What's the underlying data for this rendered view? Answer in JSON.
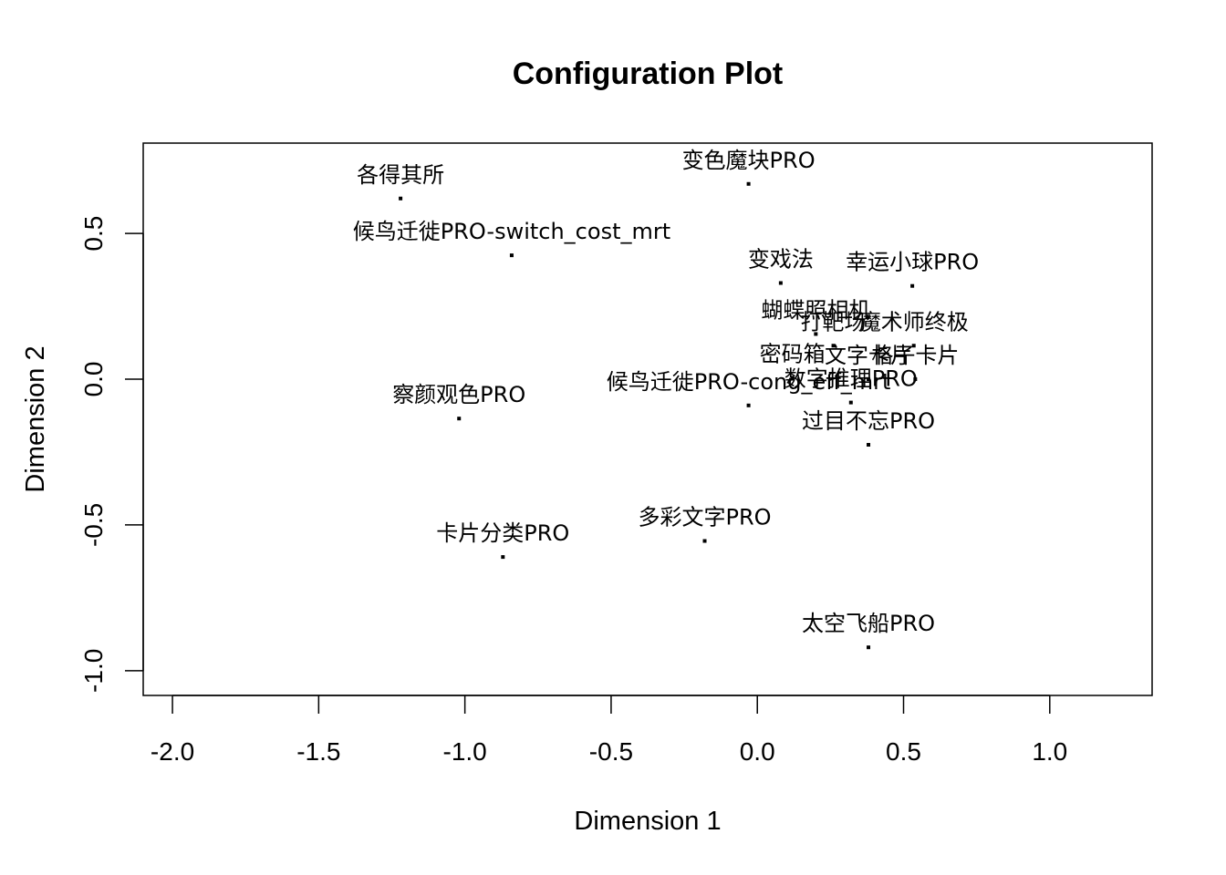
{
  "chart_data": {
    "type": "scatter",
    "title": "Configuration Plot",
    "xlabel": "Dimension 1",
    "ylabel": "Dimension 2",
    "xlim": [
      -2.1,
      1.35
    ],
    "ylim": [
      -1.085,
      0.81
    ],
    "xticks": [
      -2.0,
      -1.5,
      -1.0,
      -0.5,
      0.0,
      0.5,
      1.0
    ],
    "xtick_labels": [
      "-2.0",
      "-1.5",
      "-1.0",
      "-0.5",
      "0.0",
      "0.5",
      "1.0"
    ],
    "yticks": [
      -1.0,
      -0.5,
      0.0,
      0.5
    ],
    "ytick_labels": [
      "-1.0",
      "-0.5",
      "0.0",
      "0.5"
    ],
    "grid": false,
    "points": [
      {
        "label": "各得其所",
        "x": -1.22,
        "y": 0.62
      },
      {
        "label": "变色魔块PRO",
        "x": -0.03,
        "y": 0.67
      },
      {
        "label": "候鸟迁徙PRO-switch_cost_mrt",
        "x": -0.84,
        "y": 0.425
      },
      {
        "label": "变戏法",
        "x": 0.08,
        "y": 0.33
      },
      {
        "label": "幸运小球PRO",
        "x": 0.53,
        "y": 0.32
      },
      {
        "label": "蝴蝶照相机",
        "x": 0.2,
        "y": 0.155
      },
      {
        "label": "打靶场",
        "x": 0.26,
        "y": 0.115
      },
      {
        "label": "魔术师终极",
        "x": 0.535,
        "y": 0.115
      },
      {
        "label": "格子卡片",
        "x": 0.54,
        "y": 0.0
      },
      {
        "label": "文字卡片",
        "x": 0.38,
        "y": 0.0
      },
      {
        "label": "密码箱",
        "x": 0.12,
        "y": 0.005
      },
      {
        "label": "候鸟迁徙PRO-cong_eff_mrt",
        "x": -0.03,
        "y": -0.09
      },
      {
        "label": "数字推理PRO",
        "x": 0.32,
        "y": -0.08
      },
      {
        "label": "过目不忘PRO",
        "x": 0.38,
        "y": -0.225
      },
      {
        "label": "察颜观色PRO",
        "x": -1.02,
        "y": -0.135
      },
      {
        "label": "多彩文字PRO",
        "x": -0.18,
        "y": -0.555
      },
      {
        "label": "卡片分类PRO",
        "x": -0.87,
        "y": -0.61
      },
      {
        "label": "太空飞船PRO",
        "x": 0.38,
        "y": -0.92
      }
    ]
  }
}
